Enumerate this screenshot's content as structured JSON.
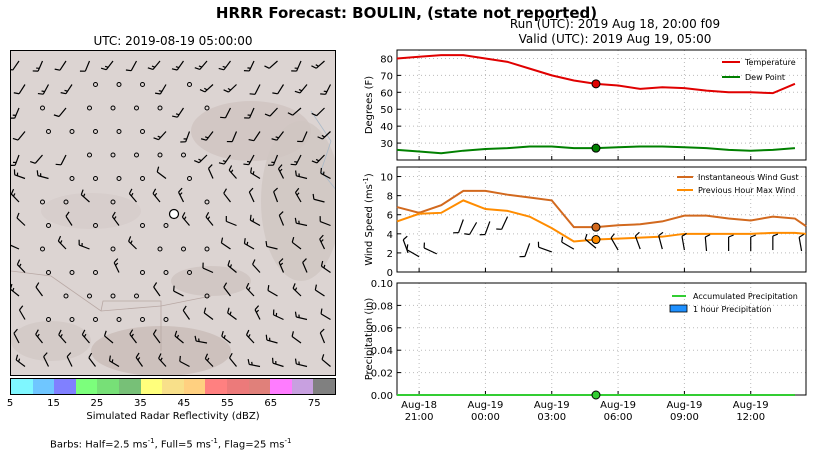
{
  "titles": {
    "main": "HRRR Forecast: BOULIN, (state not reported)",
    "run": "Run (UTC): 2019 Aug 18, 20:00 f09",
    "valid": "Valid (UTC): 2019 Aug 19, 05:00",
    "map": "UTC: 2019-08-19 05:00:00"
  },
  "colorbar": {
    "label": "Simulated Radar Reflectivity (dBZ)",
    "ticks": [
      "5",
      "15",
      "25",
      "35",
      "45",
      "55",
      "65",
      "75"
    ],
    "colors": [
      "#7ff7ff",
      "#6fc6ff",
      "#8080ff",
      "#7cff7c",
      "#77e077",
      "#77c077",
      "#ffff7c",
      "#f8e08a",
      "#ffd080",
      "#ff8080",
      "#ec7a7a",
      "#e0807a",
      "#ff7cff",
      "#c8a0e0",
      "#808080"
    ]
  },
  "barb_note": "Barbs: Half=2.5 ms",
  "barb_note_sup": "-1",
  "barb_note_2": ", Full=5 ms",
  "barb_note_sup2": "-1",
  "barb_note_3": ", Flag=25 ms",
  "barb_note_sup3": "-1",
  "chart_data": [
    {
      "type": "line",
      "ylabel": "Degrees (F)",
      "ylim": [
        20,
        85
      ],
      "yticks": [
        "30",
        "40",
        "50",
        "60",
        "70",
        "80"
      ],
      "grid": true,
      "legend_placement": "top-right",
      "x": [
        "2019-08-18 20:00",
        "2019-08-18 21:00",
        "2019-08-18 22:00",
        "2019-08-18 23:00",
        "2019-08-19 00:00",
        "2019-08-19 01:00",
        "2019-08-19 02:00",
        "2019-08-19 03:00",
        "2019-08-19 04:00",
        "2019-08-19 05:00",
        "2019-08-19 06:00",
        "2019-08-19 07:00",
        "2019-08-19 08:00",
        "2019-08-19 09:00",
        "2019-08-19 10:00",
        "2019-08-19 11:00",
        "2019-08-19 12:00",
        "2019-08-19 13:00",
        "2019-08-19 14:00"
      ],
      "series": [
        {
          "name": "Temperature",
          "color": "#e00000",
          "values": [
            80,
            81,
            82,
            82,
            80,
            78,
            74,
            70,
            67,
            65,
            64,
            62,
            63,
            62.5,
            61,
            60,
            60,
            59.5,
            65
          ]
        },
        {
          "name": "Dew Point",
          "color": "#008000",
          "values": [
            26,
            25,
            24,
            25.5,
            26.5,
            27,
            28,
            28,
            27,
            27,
            27.5,
            28,
            28,
            27.5,
            27,
            26,
            25.5,
            26,
            27
          ]
        }
      ],
      "marker_time": "2019-08-19 05:00"
    },
    {
      "type": "line",
      "ylabel": "Wind Speed (ms",
      "ylabel_sup": "-1",
      "ylabel_end": ")",
      "ylim": [
        0,
        11
      ],
      "yticks": [
        "0",
        "2",
        "4",
        "6",
        "8",
        "10"
      ],
      "grid": true,
      "legend_placement": "top-right",
      "series": [
        {
          "name": "Instantaneous Wind Gust",
          "color": "#d2691e",
          "values": [
            6.8,
            6.2,
            7.0,
            8.5,
            8.5,
            8.1,
            7.8,
            7.5,
            4.7,
            4.7,
            4.9,
            5.0,
            5.3,
            5.9,
            5.9,
            5.6,
            5.4,
            5.8,
            5.6,
            4.8
          ]
        },
        {
          "name": "Previous Hour Max Wind",
          "color": "#ff8c00",
          "values": [
            5.3,
            6.1,
            6.2,
            7.5,
            6.6,
            6.4,
            5.8,
            4.6,
            3.2,
            3.4,
            3.5,
            3.6,
            3.7,
            4.0,
            4.0,
            4.0,
            4.0,
            4.1,
            4.1,
            4.0
          ]
        }
      ],
      "x_index_hours_from_2019-08-18_20:00": [
        0,
        1,
        2,
        3,
        4,
        5,
        6,
        7,
        8,
        9,
        10,
        11,
        12,
        13,
        14,
        15,
        16,
        17,
        18,
        18.5
      ],
      "marker_time": "2019-08-19 05:00"
    },
    {
      "type": "line",
      "ylabel": "Precipitation (in)",
      "ylim": [
        0,
        0.1
      ],
      "yticks": [
        "0.00",
        "0.02",
        "0.04",
        "0.06",
        "0.08",
        "0.10"
      ],
      "grid": true,
      "legend_placement": "top-right",
      "series": [
        {
          "name": "Accumulated Precipitation",
          "color": "#32cd32",
          "values": [
            0,
            0,
            0,
            0,
            0,
            0,
            0,
            0,
            0,
            0,
            0,
            0,
            0,
            0,
            0,
            0,
            0,
            0,
            0
          ]
        },
        {
          "name": "1 hour Precipitation",
          "color": "#1e90ff",
          "values": [
            0,
            0,
            0,
            0,
            0,
            0,
            0,
            0,
            0,
            0,
            0,
            0,
            0,
            0,
            0,
            0,
            0,
            0,
            0
          ]
        }
      ],
      "xticks": [
        {
          "date": "Aug-18",
          "time": "21:00"
        },
        {
          "date": "Aug-19",
          "time": "00:00"
        },
        {
          "date": "Aug-19",
          "time": "03:00"
        },
        {
          "date": "Aug-19",
          "time": "06:00"
        },
        {
          "date": "Aug-19",
          "time": "09:00"
        },
        {
          "date": "Aug-19",
          "time": "12:00"
        }
      ],
      "marker_time": "2019-08-19 05:00"
    }
  ]
}
